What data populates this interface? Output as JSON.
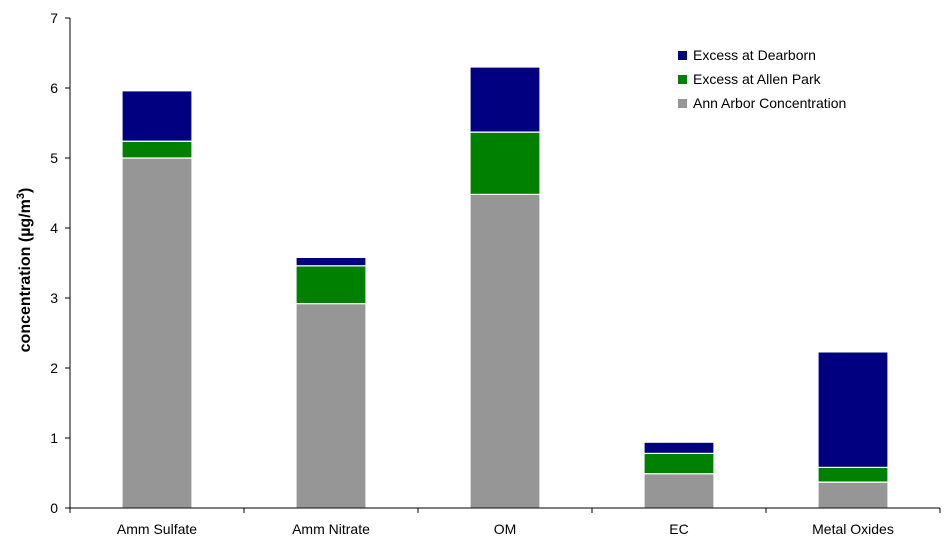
{
  "chart_data": {
    "type": "bar",
    "stacked": true,
    "categories": [
      "Amm Sulfate",
      "Amm Nitrate",
      "OM",
      "EC",
      "Metal Oxides"
    ],
    "series": [
      {
        "name": "Ann Arbor Concentration",
        "color": "#969696",
        "values": [
          5.0,
          2.92,
          4.48,
          0.49,
          0.37
        ]
      },
      {
        "name": "Excess at Allen Park",
        "color": "#008000",
        "values": [
          0.24,
          0.54,
          0.89,
          0.29,
          0.21
        ]
      },
      {
        "name": "Excess at Dearborn",
        "color": "#000080",
        "values": [
          0.72,
          0.12,
          0.93,
          0.16,
          1.65
        ]
      }
    ],
    "legend_order": [
      "Excess at Dearborn",
      "Excess at Allen Park",
      "Ann Arbor Concentration"
    ],
    "legend_position": "top-right",
    "ylabel_main": "concentration (µg/m",
    "ylabel_sup": "3",
    "ylabel_close": ")",
    "xlabel": "",
    "ylim": [
      0,
      7
    ],
    "yticks": [
      "0",
      "1",
      "2",
      "3",
      "4",
      "5",
      "6",
      "7"
    ],
    "grid": false
  }
}
